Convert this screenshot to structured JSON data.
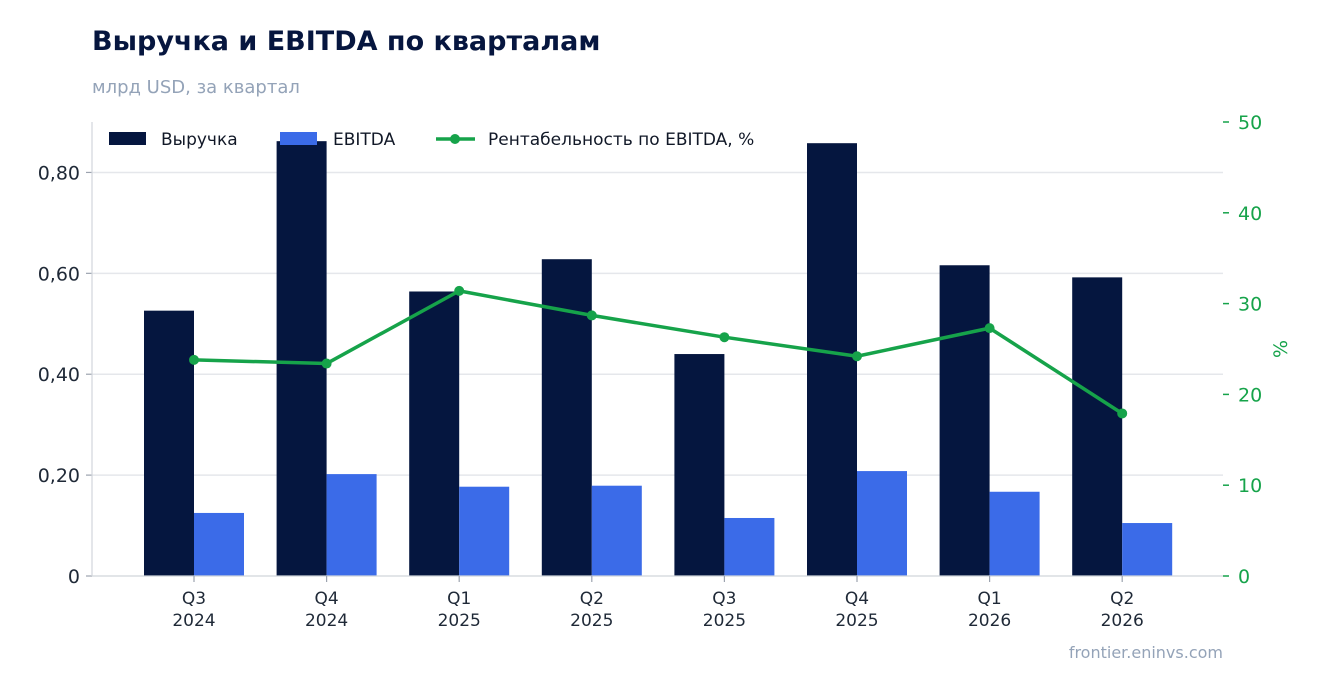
{
  "header": {
    "title": "Выручка и EBITDA по кварталам",
    "subtitle": "млрд USD, за квартал"
  },
  "footer": {
    "source": "frontier.eninvs.com"
  },
  "colors": {
    "revenue": "#05163f",
    "ebitda": "#3b6be8",
    "margin": "#16a34a",
    "grid": "#e5e7eb"
  },
  "chart_data": {
    "type": "bar",
    "categories": [
      [
        "Q3",
        "2024"
      ],
      [
        "Q4",
        "2024"
      ],
      [
        "Q1",
        "2025"
      ],
      [
        "Q2",
        "2025"
      ],
      [
        "Q3",
        "2025"
      ],
      [
        "Q4",
        "2025"
      ],
      [
        "Q1",
        "2026"
      ],
      [
        "Q2",
        "2026"
      ]
    ],
    "series": [
      {
        "name": "Выручка",
        "type": "bar",
        "axis": "left",
        "values": [
          0.526,
          0.862,
          0.564,
          0.628,
          0.44,
          0.858,
          0.616,
          0.592
        ]
      },
      {
        "name": "EBITDA",
        "type": "bar",
        "axis": "left",
        "values": [
          0.125,
          0.202,
          0.177,
          0.179,
          0.115,
          0.208,
          0.167,
          0.105
        ]
      },
      {
        "name": "Рентабельность по EBITDA, %",
        "type": "line",
        "axis": "right",
        "values": [
          23.8,
          23.4,
          31.4,
          28.7,
          26.3,
          24.2,
          27.3,
          17.9
        ]
      }
    ],
    "y_left": {
      "ylim": [
        0,
        0.9
      ],
      "ticks": [
        0,
        0.2,
        0.4,
        0.6,
        0.8
      ],
      "tick_labels": [
        "0",
        "0,20",
        "0,40",
        "0,60",
        "0,80"
      ]
    },
    "y_right": {
      "label": "%",
      "ylim": [
        0,
        50
      ],
      "ticks": [
        0,
        10,
        20,
        30,
        40,
        50
      ],
      "tick_labels": [
        "0",
        "10",
        "20",
        "30",
        "40",
        "50"
      ]
    },
    "grid": true,
    "legend": "top-left"
  }
}
